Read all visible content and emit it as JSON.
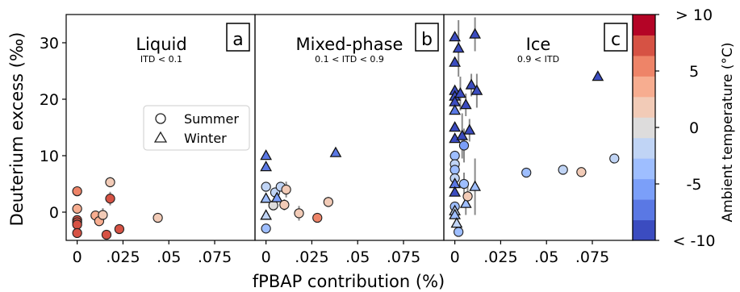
{
  "figure": {
    "ylabel": "Deuterium excess (‰)",
    "xlabel": "fPBAP contribution (%)",
    "ylim": [
      -5,
      35
    ],
    "yticks": [
      0,
      10,
      20,
      30
    ],
    "ytick_labels": [
      "0",
      "10",
      "20",
      "30"
    ],
    "xlim": [
      -0.006,
      0.097
    ],
    "xticks": [
      0,
      0.025,
      0.05,
      0.075
    ],
    "xtick_labels": [
      "0",
      ".025",
      ".05",
      ".075"
    ]
  },
  "legend": {
    "placement": "center-right of panel a",
    "entries": [
      {
        "marker": "circle",
        "label": "Summer"
      },
      {
        "marker": "triangle",
        "label": "Winter"
      }
    ]
  },
  "colorbar": {
    "label": "Ambient temperature (°C)",
    "colors": [
      "#3b4cc0",
      "#5a78e4",
      "#7b9ff9",
      "#9ebeff",
      "#c0d4f5",
      "#dddcdc",
      "#f2cbb7",
      "#f7ad90",
      "#ee8468",
      "#d65244",
      "#b40426"
    ],
    "tick_labels": [
      "< -10",
      "-5",
      "0",
      "5",
      "> 10"
    ],
    "tick_values": [
      -10,
      -5,
      0,
      5,
      10
    ],
    "range": [
      -10,
      10
    ]
  },
  "chart_data": [
    {
      "type": "scatter",
      "panel_label": "a",
      "title": "Liquid",
      "subtitle": "ITD < 0.1",
      "points": [
        {
          "x": 0.0,
          "y": 3.7,
          "t": 6.0,
          "m": "circle",
          "err": 0
        },
        {
          "x": 0.0,
          "y": 0.6,
          "t": 3.0,
          "m": "circle",
          "err": 0
        },
        {
          "x": 0.0,
          "y": -1.4,
          "t": 7.0,
          "m": "circle",
          "err": 0
        },
        {
          "x": 0.0,
          "y": -1.8,
          "t": 6.5,
          "m": "circle",
          "err": 0
        },
        {
          "x": 0.0,
          "y": -2.2,
          "t": 7.5,
          "m": "circle",
          "err": 0
        },
        {
          "x": 0.0,
          "y": -3.7,
          "t": 6.8,
          "m": "circle",
          "err": 0
        },
        {
          "x": 0.01,
          "y": -0.6,
          "t": 4.0,
          "m": "circle",
          "err": 0.8
        },
        {
          "x": 0.012,
          "y": -1.6,
          "t": 3.0,
          "m": "circle",
          "err": 0.8
        },
        {
          "x": 0.014,
          "y": -0.5,
          "t": 2.0,
          "m": "circle",
          "err": 1.2
        },
        {
          "x": 0.016,
          "y": -4.0,
          "t": 7.5,
          "m": "circle",
          "err": 0
        },
        {
          "x": 0.018,
          "y": 5.3,
          "t": 2.5,
          "m": "circle",
          "err": 0.9
        },
        {
          "x": 0.018,
          "y": 2.4,
          "t": 8.0,
          "m": "circle",
          "err": 1.2
        },
        {
          "x": 0.023,
          "y": -3.0,
          "t": 6.5,
          "m": "circle",
          "err": 0
        },
        {
          "x": 0.044,
          "y": -1.0,
          "t": 1.5,
          "m": "circle",
          "err": 0
        }
      ]
    },
    {
      "type": "scatter",
      "panel_label": "b",
      "title": "Mixed-phase",
      "subtitle": "0.1 < ITD < 0.9",
      "points": [
        {
          "x": 0.0,
          "y": 10.0,
          "t": -8.0,
          "m": "triangle",
          "err": 0
        },
        {
          "x": 0.0,
          "y": 8.0,
          "t": -7.0,
          "m": "triangle",
          "err": 0
        },
        {
          "x": 0.0,
          "y": 4.5,
          "t": -2.0,
          "m": "circle",
          "err": 0
        },
        {
          "x": 0.0,
          "y": 2.4,
          "t": -3.5,
          "m": "triangle",
          "err": 0
        },
        {
          "x": 0.0,
          "y": -0.6,
          "t": -2.5,
          "m": "triangle",
          "err": 0
        },
        {
          "x": 0.0,
          "y": -2.9,
          "t": -3.0,
          "m": "circle",
          "err": 0
        },
        {
          "x": 0.004,
          "y": 1.2,
          "t": 0.5,
          "m": "circle",
          "err": 0
        },
        {
          "x": 0.005,
          "y": 3.5,
          "t": -1.0,
          "m": "circle",
          "err": 0
        },
        {
          "x": 0.006,
          "y": 2.5,
          "t": -5.0,
          "m": "triangle",
          "err": 0
        },
        {
          "x": 0.008,
          "y": 4.5,
          "t": -1.5,
          "m": "circle",
          "err": 0
        },
        {
          "x": 0.01,
          "y": 1.3,
          "t": 1.0,
          "m": "circle",
          "err": 1.0
        },
        {
          "x": 0.011,
          "y": 4.0,
          "t": 1.0,
          "m": "circle",
          "err": 1.4
        },
        {
          "x": 0.018,
          "y": -0.2,
          "t": 1.5,
          "m": "circle",
          "err": 1.3
        },
        {
          "x": 0.028,
          "y": -1.0,
          "t": 6.0,
          "m": "circle",
          "err": 0
        },
        {
          "x": 0.034,
          "y": 1.8,
          "t": 2.5,
          "m": "circle",
          "err": 0.9
        },
        {
          "x": 0.038,
          "y": 10.5,
          "t": -8.0,
          "m": "triangle",
          "err": 0
        }
      ]
    },
    {
      "type": "scatter",
      "panel_label": "c",
      "title": "Ice",
      "subtitle": "0.9 < ITD",
      "points": [
        {
          "x": 0.0,
          "y": 31.0,
          "t": -9.0,
          "m": "triangle",
          "err": 0
        },
        {
          "x": 0.0,
          "y": 26.5,
          "t": -8.5,
          "m": "triangle",
          "err": 0
        },
        {
          "x": 0.0,
          "y": 21.5,
          "t": -9.0,
          "m": "triangle",
          "err": 0
        },
        {
          "x": 0.0,
          "y": 20.5,
          "t": -8.5,
          "m": "triangle",
          "err": 0
        },
        {
          "x": 0.0,
          "y": 19.5,
          "t": -9.0,
          "m": "triangle",
          "err": 0
        },
        {
          "x": 0.0,
          "y": 18.0,
          "t": -8.0,
          "m": "triangle",
          "err": 0
        },
        {
          "x": 0.0,
          "y": 15.0,
          "t": -8.5,
          "m": "triangle",
          "err": 0
        },
        {
          "x": 0.0,
          "y": 13.0,
          "t": -9.0,
          "m": "triangle",
          "err": 0
        },
        {
          "x": 0.0,
          "y": 10.0,
          "t": -3.0,
          "m": "circle",
          "err": 0
        },
        {
          "x": 0.0,
          "y": 8.5,
          "t": -2.5,
          "m": "circle",
          "err": 0
        },
        {
          "x": 0.0,
          "y": 7.5,
          "t": -3.5,
          "m": "circle",
          "err": 0
        },
        {
          "x": 0.0,
          "y": 6.0,
          "t": -2.0,
          "m": "circle",
          "err": 0
        },
        {
          "x": 0.0,
          "y": 5.0,
          "t": -7.0,
          "m": "triangle",
          "err": 0
        },
        {
          "x": 0.0,
          "y": 3.5,
          "t": -8.5,
          "m": "triangle",
          "err": 0
        },
        {
          "x": 0.0,
          "y": 1.0,
          "t": -3.0,
          "m": "circle",
          "err": 0
        },
        {
          "x": 0.0,
          "y": 0.2,
          "t": -2.0,
          "m": "triangle",
          "err": 0
        },
        {
          "x": 0.0,
          "y": -0.5,
          "t": -3.0,
          "m": "triangle",
          "err": 0
        },
        {
          "x": 0.001,
          "y": -2.0,
          "t": -2.5,
          "m": "triangle",
          "err": 0
        },
        {
          "x": 0.002,
          "y": -3.5,
          "t": -3.0,
          "m": "circle",
          "err": 0
        },
        {
          "x": 0.002,
          "y": 29.0,
          "t": -9.0,
          "m": "triangle",
          "err": 5.0
        },
        {
          "x": 0.003,
          "y": 21.0,
          "t": -9.0,
          "m": "triangle",
          "err": 3.0
        },
        {
          "x": 0.004,
          "y": 13.5,
          "t": -8.5,
          "m": "triangle",
          "err": 4.0
        },
        {
          "x": 0.005,
          "y": 11.8,
          "t": -5.0,
          "m": "circle",
          "err": 3.0
        },
        {
          "x": 0.005,
          "y": 5.0,
          "t": -3.0,
          "m": "circle",
          "err": 2.0
        },
        {
          "x": 0.006,
          "y": 19.0,
          "t": -8.5,
          "m": "triangle",
          "err": 2.0
        },
        {
          "x": 0.006,
          "y": 1.5,
          "t": -3.0,
          "m": "triangle",
          "err": 2.0
        },
        {
          "x": 0.007,
          "y": 2.8,
          "t": 1.0,
          "m": "circle",
          "err": 2.0
        },
        {
          "x": 0.008,
          "y": 14.5,
          "t": -9.0,
          "m": "triangle",
          "err": 2.0
        },
        {
          "x": 0.009,
          "y": 22.5,
          "t": -9.0,
          "m": "triangle",
          "err": 2.0
        },
        {
          "x": 0.011,
          "y": 31.5,
          "t": -9.0,
          "m": "triangle",
          "err": 3.0
        },
        {
          "x": 0.012,
          "y": 21.5,
          "t": -9.0,
          "m": "triangle",
          "err": 3.0
        },
        {
          "x": 0.011,
          "y": 4.5,
          "t": -3.0,
          "m": "triangle",
          "err": 5.0
        },
        {
          "x": 0.039,
          "y": 7.0,
          "t": -3.0,
          "m": "circle",
          "err": 0
        },
        {
          "x": 0.059,
          "y": 7.5,
          "t": -2.0,
          "m": "circle",
          "err": 0
        },
        {
          "x": 0.069,
          "y": 7.1,
          "t": 1.0,
          "m": "circle",
          "err": 0
        },
        {
          "x": 0.078,
          "y": 24.0,
          "t": -8.5,
          "m": "triangle",
          "err": 0
        },
        {
          "x": 0.087,
          "y": 9.5,
          "t": -1.5,
          "m": "circle",
          "err": 0
        }
      ]
    }
  ]
}
